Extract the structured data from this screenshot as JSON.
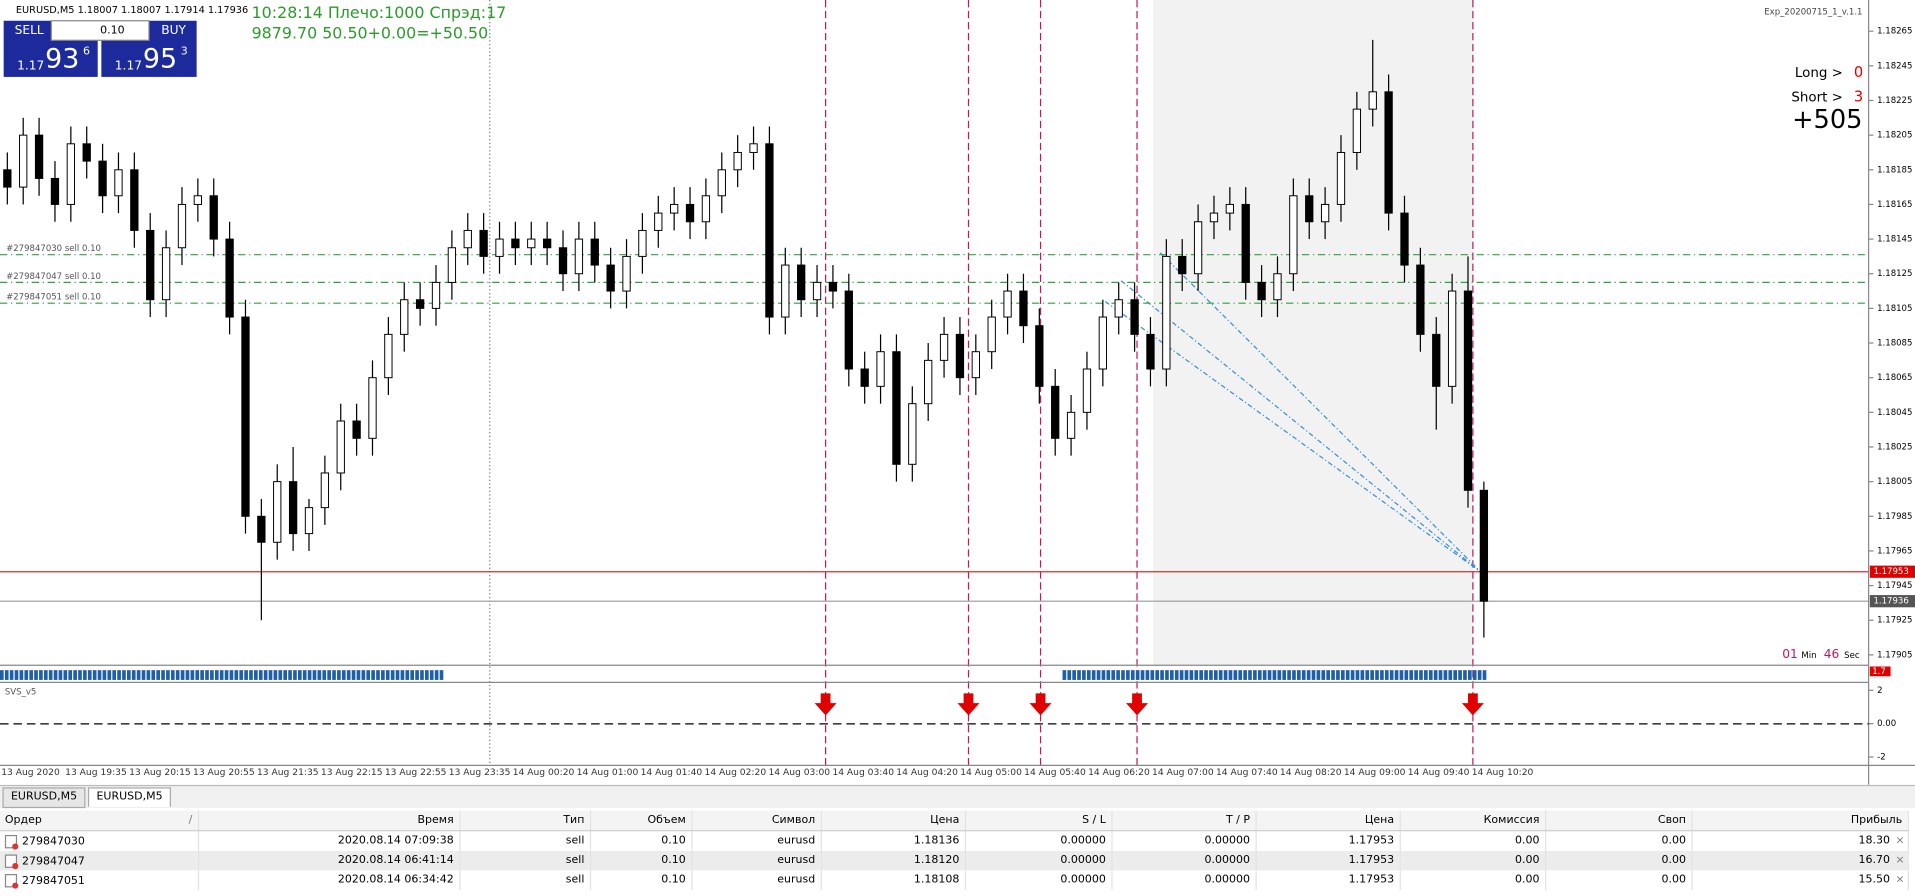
{
  "header": "EURUSD,M5  1.18007 1.18007 1.17914 1.17936",
  "trade_panel": {
    "sell": "SELL",
    "lot": "0.10",
    "buy": "BUY",
    "bid_big": "1.17",
    "bid_pips": "93",
    "bid_point": "6",
    "ask_big": "1.17",
    "ask_pips": "95",
    "ask_point": "3"
  },
  "status": [
    "10:28:14 Плечо:1000 Спрэд:17",
    "9879.70   50.50+0.00=+50.50"
  ],
  "expert": "Exp_20200715_1_v.1.1",
  "stats": {
    "long_label": "Long >",
    "long": "0",
    "short_label": "Short >",
    "short": "3",
    "profit": "+505"
  },
  "timer": {
    "min": "01",
    "min_label": "Min",
    "sec": "46",
    "sec_label": "Sec"
  },
  "chart": {
    "ylim": [
      1.17899,
      1.18283
    ],
    "yticks": [
      1.18265,
      1.18245,
      1.18225,
      1.18205,
      1.18185,
      1.18165,
      1.18145,
      1.18125,
      1.18105,
      1.18085,
      1.18065,
      1.18045,
      1.18025,
      1.18005,
      1.17985,
      1.17965,
      1.17945,
      1.17925,
      1.17905
    ],
    "order_lines": [
      {
        "label": "#279847030 sell 0.10",
        "value": 1.18136
      },
      {
        "label": "#279847047 sell 0.10",
        "value": 1.1812
      },
      {
        "label": "#279847051 sell 0.10",
        "value": 1.18108
      }
    ],
    "bid_line": 1.17953,
    "last_line": 1.17936,
    "xlabels": [
      "13 Aug 2020",
      "13 Aug 19:35",
      "13 Aug 20:15",
      "13 Aug 20:55",
      "13 Aug 21:35",
      "13 Aug 22:15",
      "13 Aug 22:55",
      "13 Aug 23:35",
      "14 Aug 00:20",
      "14 Aug 01:00",
      "14 Aug 01:40",
      "14 Aug 02:20",
      "14 Aug 03:00",
      "14 Aug 03:40",
      "14 Aug 04:20",
      "14 Aug 05:00",
      "14 Aug 05:40",
      "14 Aug 06:20",
      "14 Aug 07:00",
      "14 Aug 07:40",
      "14 Aug 08:20",
      "14 Aug 09:00",
      "14 Aug 09:40",
      "14 Aug 10:20"
    ],
    "candles": [
      [
        1.18185,
        1.18195,
        1.18165,
        1.18175
      ],
      [
        1.18175,
        1.18215,
        1.18165,
        1.18205
      ],
      [
        1.18205,
        1.18215,
        1.1817,
        1.1818
      ],
      [
        1.1818,
        1.1819,
        1.18155,
        1.18165
      ],
      [
        1.18165,
        1.1821,
        1.18155,
        1.182
      ],
      [
        1.182,
        1.1821,
        1.1818,
        1.1819
      ],
      [
        1.1819,
        1.182,
        1.1816,
        1.1817
      ],
      [
        1.1817,
        1.18195,
        1.1816,
        1.18185
      ],
      [
        1.18185,
        1.18195,
        1.1814,
        1.1815
      ],
      [
        1.1815,
        1.1816,
        1.181,
        1.1811
      ],
      [
        1.1811,
        1.1815,
        1.181,
        1.1814
      ],
      [
        1.1814,
        1.18175,
        1.1813,
        1.18165
      ],
      [
        1.18165,
        1.1818,
        1.18155,
        1.1817
      ],
      [
        1.1817,
        1.1818,
        1.18135,
        1.18145
      ],
      [
        1.18145,
        1.18155,
        1.1809,
        1.181
      ],
      [
        1.181,
        1.1811,
        1.17975,
        1.17985
      ],
      [
        1.17985,
        1.17995,
        1.17925,
        1.1797
      ],
      [
        1.1797,
        1.18015,
        1.1796,
        1.18005
      ],
      [
        1.18005,
        1.18025,
        1.17965,
        1.17975
      ],
      [
        1.17975,
        1.17995,
        1.17965,
        1.1799
      ],
      [
        1.1799,
        1.1802,
        1.1798,
        1.1801
      ],
      [
        1.1801,
        1.1805,
        1.18,
        1.1804
      ],
      [
        1.1804,
        1.1805,
        1.1802,
        1.1803
      ],
      [
        1.1803,
        1.18075,
        1.1802,
        1.18065
      ],
      [
        1.18065,
        1.181,
        1.18055,
        1.1809
      ],
      [
        1.1809,
        1.1812,
        1.1808,
        1.1811
      ],
      [
        1.1811,
        1.1812,
        1.18095,
        1.18105
      ],
      [
        1.18105,
        1.1813,
        1.18095,
        1.1812
      ],
      [
        1.1812,
        1.1815,
        1.1811,
        1.1814
      ],
      [
        1.1814,
        1.1816,
        1.1813,
        1.1815
      ],
      [
        1.1815,
        1.1816,
        1.18125,
        1.18135
      ],
      [
        1.18135,
        1.18155,
        1.18125,
        1.18145
      ],
      [
        1.18145,
        1.18155,
        1.1813,
        1.1814
      ],
      [
        1.1814,
        1.18155,
        1.1813,
        1.18145
      ],
      [
        1.18145,
        1.18155,
        1.1813,
        1.1814
      ],
      [
        1.1814,
        1.1815,
        1.18115,
        1.18125
      ],
      [
        1.18125,
        1.18155,
        1.18115,
        1.18145
      ],
      [
        1.18145,
        1.18155,
        1.1812,
        1.1813
      ],
      [
        1.1813,
        1.1814,
        1.18105,
        1.18115
      ],
      [
        1.18115,
        1.18145,
        1.18105,
        1.18135
      ],
      [
        1.18135,
        1.1816,
        1.18125,
        1.1815
      ],
      [
        1.1815,
        1.1817,
        1.1814,
        1.1816
      ],
      [
        1.1816,
        1.18175,
        1.1815,
        1.18165
      ],
      [
        1.18165,
        1.18175,
        1.18145,
        1.18155
      ],
      [
        1.18155,
        1.1818,
        1.18145,
        1.1817
      ],
      [
        1.1817,
        1.18195,
        1.1816,
        1.18185
      ],
      [
        1.18185,
        1.18205,
        1.18175,
        1.18195
      ],
      [
        1.18195,
        1.1821,
        1.18185,
        1.182
      ],
      [
        1.182,
        1.1821,
        1.1809,
        1.181
      ],
      [
        1.181,
        1.1814,
        1.1809,
        1.1813
      ],
      [
        1.1813,
        1.1814,
        1.181,
        1.1811
      ],
      [
        1.1811,
        1.1813,
        1.181,
        1.1812
      ],
      [
        1.1812,
        1.1813,
        1.18105,
        1.18115
      ],
      [
        1.18115,
        1.18125,
        1.1806,
        1.1807
      ],
      [
        1.1807,
        1.1808,
        1.1805,
        1.1806
      ],
      [
        1.1806,
        1.1809,
        1.1805,
        1.1808
      ],
      [
        1.1808,
        1.1809,
        1.18005,
        1.18015
      ],
      [
        1.18015,
        1.1806,
        1.18005,
        1.1805
      ],
      [
        1.1805,
        1.18085,
        1.1804,
        1.18075
      ],
      [
        1.18075,
        1.181,
        1.18065,
        1.1809
      ],
      [
        1.1809,
        1.181,
        1.18055,
        1.18065
      ],
      [
        1.18065,
        1.1809,
        1.18055,
        1.1808
      ],
      [
        1.1808,
        1.1811,
        1.1807,
        1.181
      ],
      [
        1.181,
        1.18125,
        1.1809,
        1.18115
      ],
      [
        1.18115,
        1.18125,
        1.18085,
        1.18095
      ],
      [
        1.18095,
        1.18105,
        1.1805,
        1.1806
      ],
      [
        1.1806,
        1.1807,
        1.1802,
        1.1803
      ],
      [
        1.1803,
        1.18055,
        1.1802,
        1.18045
      ],
      [
        1.18045,
        1.1808,
        1.18035,
        1.1807
      ],
      [
        1.1807,
        1.1811,
        1.1806,
        1.181
      ],
      [
        1.181,
        1.1812,
        1.1809,
        1.1811
      ],
      [
        1.1811,
        1.1812,
        1.1808,
        1.1809
      ],
      [
        1.1809,
        1.181,
        1.1806,
        1.1807
      ],
      [
        1.1807,
        1.18145,
        1.1806,
        1.18135
      ],
      [
        1.18135,
        1.18145,
        1.18115,
        1.18125
      ],
      [
        1.18125,
        1.18165,
        1.18115,
        1.18155
      ],
      [
        1.18155,
        1.1817,
        1.18145,
        1.1816
      ],
      [
        1.1816,
        1.18175,
        1.1815,
        1.18165
      ],
      [
        1.18165,
        1.18175,
        1.1811,
        1.1812
      ],
      [
        1.1812,
        1.1813,
        1.181,
        1.1811
      ],
      [
        1.1811,
        1.18135,
        1.181,
        1.18125
      ],
      [
        1.18125,
        1.1818,
        1.18115,
        1.1817
      ],
      [
        1.1817,
        1.1818,
        1.18145,
        1.18155
      ],
      [
        1.18155,
        1.18175,
        1.18145,
        1.18165
      ],
      [
        1.18165,
        1.18205,
        1.18155,
        1.18195
      ],
      [
        1.18195,
        1.1823,
        1.18185,
        1.1822
      ],
      [
        1.1822,
        1.1826,
        1.1821,
        1.1823
      ],
      [
        1.1823,
        1.1824,
        1.1815,
        1.1816
      ],
      [
        1.1816,
        1.1817,
        1.1812,
        1.1813
      ],
      [
        1.1813,
        1.1814,
        1.1808,
        1.1809
      ],
      [
        1.1809,
        1.181,
        1.18035,
        1.1806
      ],
      [
        1.1806,
        1.18125,
        1.1805,
        1.18115
      ],
      [
        1.18115,
        1.18135,
        1.1799,
        1.18
      ],
      [
        1.18,
        1.18005,
        1.17915,
        1.17936
      ]
    ]
  },
  "indicator": {
    "name": "SVS_v5",
    "strip_label": "1.7",
    "ylim": [
      -2.5,
      2.4
    ],
    "yticks": [
      2,
      {
        "value": 0,
        "label": "0.00"
      },
      -2
    ]
  },
  "tabs": [
    "EURUSD,M5",
    "EURUSD,M5"
  ],
  "table": {
    "headers": [
      "Ордер",
      "Время",
      "Тип",
      "Объем",
      "Символ",
      "Цена",
      "S / L",
      "T / P",
      "Цена",
      "Комиссия",
      "Своп",
      "Прибыль"
    ],
    "sort_mark": "/",
    "rows": [
      [
        "279847030",
        "2020.08.14 07:09:38",
        "sell",
        "0.10",
        "eurusd",
        "1.18136",
        "0.00000",
        "0.00000",
        "1.17953",
        "0.00",
        "0.00",
        "18.30"
      ],
      [
        "279847047",
        "2020.08.14 06:41:14",
        "sell",
        "0.10",
        "eurusd",
        "1.18120",
        "0.00000",
        "0.00000",
        "1.17953",
        "0.00",
        "0.00",
        "16.70"
      ],
      [
        "279847051",
        "2020.08.14 06:34:42",
        "sell",
        "0.10",
        "eurusd",
        "1.18108",
        "0.00000",
        "0.00000",
        "1.17953",
        "0.00",
        "0.00",
        "15.50"
      ]
    ]
  }
}
